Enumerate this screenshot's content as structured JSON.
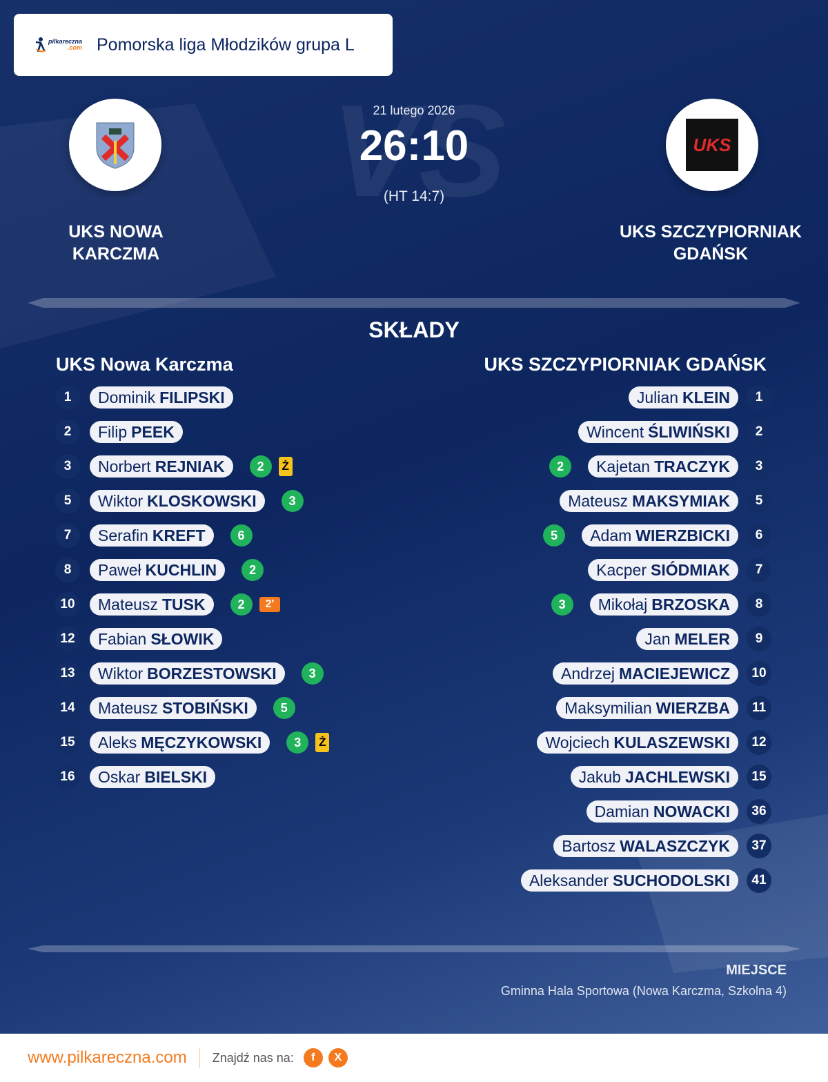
{
  "header": {
    "logo_text": "pilkareczna",
    "logo_domain": ".com",
    "league": "Pomorska liga Młodzików grupa L"
  },
  "match": {
    "date": "21 lutego 2026",
    "score": "26:10",
    "halftime": "(HT 14:7)",
    "vs": "VS",
    "home": {
      "name_line1": "UKS NOWA",
      "name_line2": "KARCZMA"
    },
    "away": {
      "name_line1": "UKS SZCZYPIORNIAK",
      "name_line2": "GDAŃSK",
      "crest_text": "UKS"
    }
  },
  "lineups": {
    "title": "SKŁADY",
    "home": {
      "team": "UKS Nowa Karczma",
      "players": [
        {
          "num": "1",
          "first": "Dominik",
          "last": "FILIPSKI",
          "events": []
        },
        {
          "num": "2",
          "first": "Filip",
          "last": "PEEK",
          "events": []
        },
        {
          "num": "3",
          "first": "Norbert",
          "last": "REJNIAK",
          "events": [
            {
              "type": "goals",
              "value": "2"
            },
            {
              "type": "yellow",
              "value": "Ż"
            }
          ]
        },
        {
          "num": "5",
          "first": "Wiktor",
          "last": "KLOSKOWSKI",
          "events": [
            {
              "type": "goals",
              "value": "3"
            }
          ]
        },
        {
          "num": "7",
          "first": "Serafin",
          "last": "KREFT",
          "events": [
            {
              "type": "goals",
              "value": "6"
            }
          ]
        },
        {
          "num": "8",
          "first": "Paweł",
          "last": "KUCHLIN",
          "events": [
            {
              "type": "goals",
              "value": "2"
            }
          ]
        },
        {
          "num": "10",
          "first": "Mateusz",
          "last": "TUSK",
          "events": [
            {
              "type": "goals",
              "value": "2"
            },
            {
              "type": "suspension",
              "value": "2'"
            }
          ]
        },
        {
          "num": "12",
          "first": "Fabian",
          "last": "SŁOWIK",
          "events": []
        },
        {
          "num": "13",
          "first": "Wiktor",
          "last": "BORZESTOWSKI",
          "events": [
            {
              "type": "goals",
              "value": "3"
            }
          ]
        },
        {
          "num": "14",
          "first": "Mateusz",
          "last": "STOBIŃSKI",
          "events": [
            {
              "type": "goals",
              "value": "5"
            }
          ]
        },
        {
          "num": "15",
          "first": "Aleks",
          "last": "MĘCZYKOWSKI",
          "events": [
            {
              "type": "goals",
              "value": "3"
            },
            {
              "type": "yellow",
              "value": "Ż"
            }
          ]
        },
        {
          "num": "16",
          "first": "Oskar",
          "last": "BIELSKI",
          "events": []
        }
      ]
    },
    "away": {
      "team": "UKS SZCZYPIORNIAK GDAŃSK",
      "players": [
        {
          "num": "1",
          "first": "Julian",
          "last": "KLEIN",
          "events": []
        },
        {
          "num": "2",
          "first": "Wincent",
          "last": "ŚLIWIŃSKI",
          "events": []
        },
        {
          "num": "3",
          "first": "Kajetan",
          "last": "TRACZYK",
          "events": [
            {
              "type": "goals",
              "value": "2"
            }
          ]
        },
        {
          "num": "5",
          "first": "Mateusz",
          "last": "MAKSYMIAK",
          "events": []
        },
        {
          "num": "6",
          "first": "Adam",
          "last": "WIERZBICKI",
          "events": [
            {
              "type": "goals",
              "value": "5"
            }
          ]
        },
        {
          "num": "7",
          "first": "Kacper",
          "last": "SIÓDMIAK",
          "events": []
        },
        {
          "num": "8",
          "first": "Mikołaj",
          "last": "BRZOSKA",
          "events": [
            {
              "type": "goals",
              "value": "3"
            }
          ]
        },
        {
          "num": "9",
          "first": "Jan",
          "last": "MELER",
          "events": []
        },
        {
          "num": "10",
          "first": "Andrzej",
          "last": "MACIEJEWICZ",
          "events": []
        },
        {
          "num": "11",
          "first": "Maksymilian",
          "last": "WIERZBA",
          "events": []
        },
        {
          "num": "12",
          "first": "Wojciech",
          "last": "KULASZEWSKI",
          "events": []
        },
        {
          "num": "15",
          "first": "Jakub",
          "last": "JACHLEWSKI",
          "events": []
        },
        {
          "num": "36",
          "first": "Damian",
          "last": "NOWACKI",
          "events": []
        },
        {
          "num": "37",
          "first": "Bartosz",
          "last": "WALASZCZYK",
          "events": []
        },
        {
          "num": "41",
          "first": "Aleksander",
          "last": "SUCHODOLSKI",
          "events": []
        }
      ]
    }
  },
  "venue": {
    "label": "MIEJSCE",
    "value": "Gminna Hala Sportowa (Nowa Karczma, Szkolna 4)"
  },
  "footer": {
    "site": "www.pilkareczna.com",
    "find_us": "Znajdź nas na:",
    "facebook": "f",
    "x": "X"
  },
  "colors": {
    "accent": "#f57a1f",
    "navy": "#0d2660",
    "goal": "#21b35b",
    "yellow_card": "#f7c21c"
  }
}
